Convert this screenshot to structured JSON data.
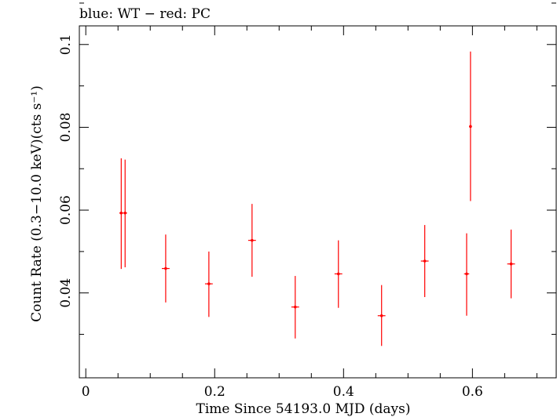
{
  "chart_data": {
    "type": "scatter",
    "title": "blue: WT − red: PC",
    "xlabel": "Time Since 54193.0 MJD (days)",
    "ylabel": "Count Rate (0.3−10.0 keV)(cts s⁻¹)",
    "xlim": [
      -0.01,
      0.73
    ],
    "ylim": [
      0.0195,
      0.1045
    ],
    "x_ticks": [
      "0",
      "0.2",
      "0.4",
      "0.6"
    ],
    "x_tick_values": [
      0,
      0.2,
      0.4,
      0.6
    ],
    "y_ticks": [
      "0.04",
      "0.06",
      "0.08",
      "0.1"
    ],
    "y_tick_values": [
      0.04,
      0.06,
      0.08,
      0.1
    ],
    "grid": false,
    "colors": {
      "PC": "#ff0000",
      "axis": "#000000"
    },
    "series": [
      {
        "name": "PC",
        "points": [
          {
            "x": 0.055,
            "y": 0.0593,
            "xerr": 0.003,
            "ylo": 0.0458,
            "yhi": 0.0725
          },
          {
            "x": 0.061,
            "y": 0.0593,
            "xerr": 0.003,
            "ylo": 0.0462,
            "yhi": 0.0722
          },
          {
            "x": 0.124,
            "y": 0.0459,
            "xerr": 0.006,
            "ylo": 0.0377,
            "yhi": 0.0541
          },
          {
            "x": 0.191,
            "y": 0.0422,
            "xerr": 0.006,
            "ylo": 0.0342,
            "yhi": 0.05
          },
          {
            "x": 0.258,
            "y": 0.0527,
            "xerr": 0.006,
            "ylo": 0.0439,
            "yhi": 0.0615
          },
          {
            "x": 0.325,
            "y": 0.0366,
            "xerr": 0.006,
            "ylo": 0.029,
            "yhi": 0.0441
          },
          {
            "x": 0.392,
            "y": 0.0446,
            "xerr": 0.006,
            "ylo": 0.0364,
            "yhi": 0.0527
          },
          {
            "x": 0.459,
            "y": 0.0345,
            "xerr": 0.006,
            "ylo": 0.0272,
            "yhi": 0.0419
          },
          {
            "x": 0.526,
            "y": 0.0477,
            "xerr": 0.006,
            "ylo": 0.039,
            "yhi": 0.0564
          },
          {
            "x": 0.591,
            "y": 0.0446,
            "xerr": 0.004,
            "ylo": 0.0345,
            "yhi": 0.0544
          },
          {
            "x": 0.597,
            "y": 0.0802,
            "xerr": 0.002,
            "ylo": 0.0622,
            "yhi": 0.0983
          },
          {
            "x": 0.66,
            "y": 0.047,
            "xerr": 0.006,
            "ylo": 0.0387,
            "yhi": 0.0553
          }
        ]
      }
    ]
  }
}
